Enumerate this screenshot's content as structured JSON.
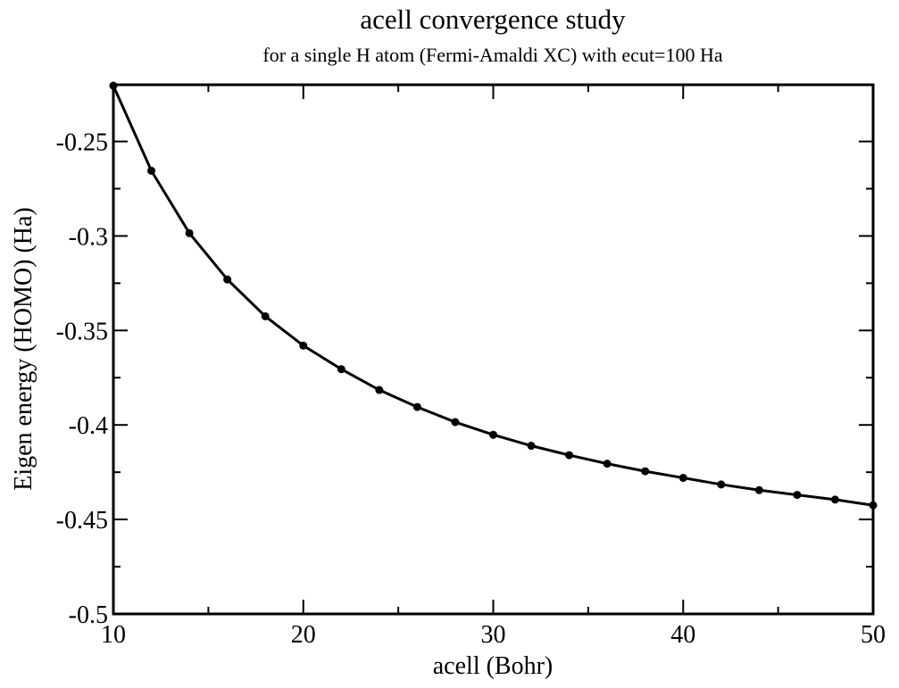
{
  "chart_data": {
    "type": "line",
    "title": "acell convergence study",
    "subtitle": "for a single H atom (Fermi-Amaldi XC) with ecut=100 Ha",
    "xlabel": "acell (Bohr)",
    "ylabel": "Eigen energy (HOMO) (Ha)",
    "xlim": [
      10,
      50
    ],
    "ylim": [
      -0.5,
      -0.22
    ],
    "x_ticks": [
      10,
      20,
      30,
      40,
      50
    ],
    "x_tick_labels": [
      "10",
      "20",
      "30",
      "40",
      "50"
    ],
    "x_minor_step": 5,
    "y_ticks": [
      -0.5,
      -0.45,
      -0.4,
      -0.35,
      -0.3,
      -0.25
    ],
    "y_tick_labels": [
      "-0.5",
      "-0.45",
      "-0.4",
      "-0.35",
      "-0.3",
      "-0.25"
    ],
    "y_minor_step": 0.025,
    "grid": false,
    "legend": "none",
    "marker": "circle",
    "line_color": "#000000",
    "series": [
      {
        "x": [
          10,
          12,
          14,
          16,
          18,
          20,
          22,
          24,
          26,
          28,
          30,
          32,
          34,
          36,
          38,
          40,
          42,
          44,
          46,
          48,
          50
        ],
        "y": [
          -0.2205,
          -0.2655,
          -0.2985,
          -0.323,
          -0.3425,
          -0.358,
          -0.3705,
          -0.3815,
          -0.3905,
          -0.3985,
          -0.4052,
          -0.411,
          -0.416,
          -0.4205,
          -0.4245,
          -0.428,
          -0.4315,
          -0.4345,
          -0.437,
          -0.4395,
          -0.4425
        ]
      }
    ]
  }
}
